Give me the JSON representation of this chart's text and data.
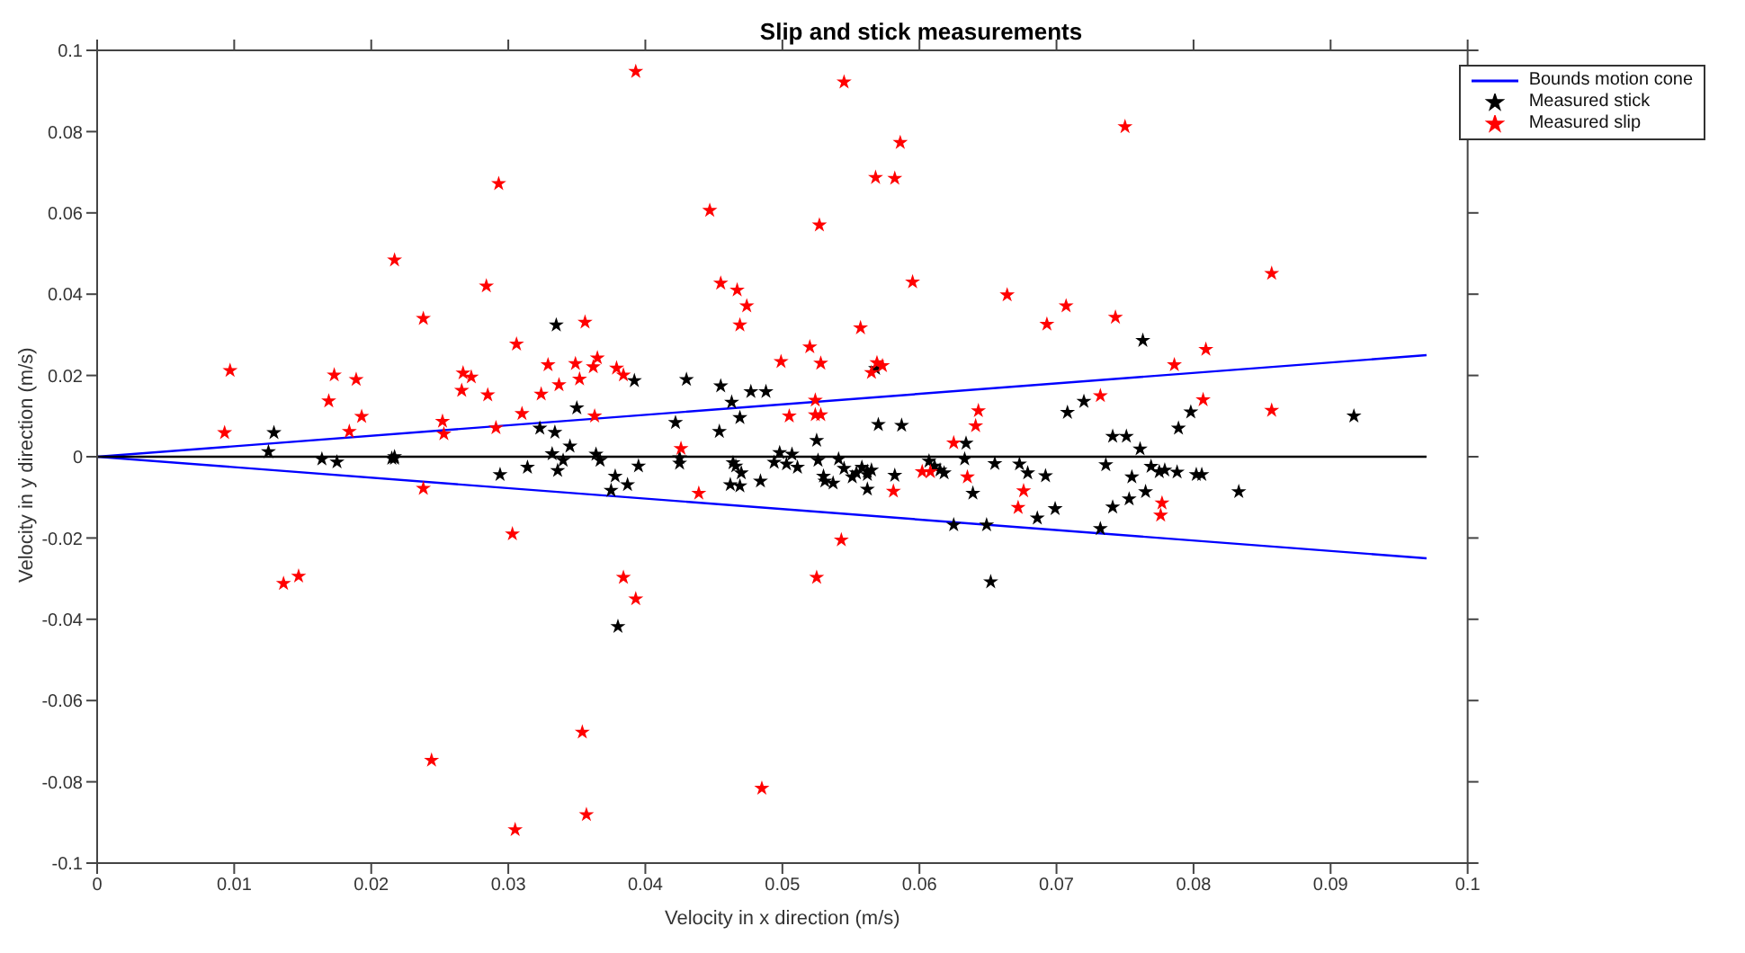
{
  "chart_data": {
    "type": "scatter",
    "title": "Slip and stick measurements",
    "xlabel": "Velocity in x direction (m/s)",
    "ylabel": "Velocity in y direction (m/s)",
    "xlim": [
      0,
      0.1
    ],
    "xticks": [
      0,
      0.01,
      0.02,
      0.03,
      0.04,
      0.05,
      0.06,
      0.07,
      0.08,
      0.09,
      0.1
    ],
    "ylim": [
      -0.1,
      0.1
    ],
    "yticks": [
      -0.1,
      -0.08,
      -0.06,
      -0.04,
      -0.02,
      0,
      0.02,
      0.04,
      0.06,
      0.08,
      0.1
    ],
    "legend": "top right",
    "series": [
      {
        "type": "line",
        "name": "Bounds motion cone",
        "color": "#0000ff",
        "marker": "none",
        "x": [
          0,
          0.097
        ],
        "values": [
          0,
          0.025
        ]
      },
      {
        "type": "line",
        "color": "#0000ff",
        "marker": "none",
        "x": [
          0,
          0.097
        ],
        "values": [
          0,
          -0.025
        ]
      },
      {
        "type": "line",
        "color": "#000000",
        "marker": "none",
        "x": [
          0,
          0.097
        ],
        "values": [
          0,
          0
        ]
      },
      {
        "name": "Measured stick",
        "color": "#000000",
        "marker": "star",
        "x": [
          0.0335,
          0.0129,
          0.0323,
          0.0334,
          0.0125,
          0.0217,
          0.0332,
          0.0164,
          0.0175,
          0.0215,
          0.0217,
          0.0294,
          0.0314,
          0.0336,
          0.0392,
          0.043,
          0.0455,
          0.0477,
          0.0488,
          0.0463,
          0.035,
          0.0469,
          0.0568,
          0.0422,
          0.0454,
          0.0525,
          0.057,
          0.0587,
          0.0345,
          0.0634,
          0.034,
          0.0364,
          0.0367,
          0.0378,
          0.0375,
          0.0387,
          0.0395,
          0.0425,
          0.0425,
          0.0462,
          0.0469,
          0.047,
          0.0464,
          0.0466,
          0.0484,
          0.0494,
          0.0498,
          0.0503,
          0.0507,
          0.0511,
          0.0526,
          0.053,
          0.0531,
          0.0537,
          0.0541,
          0.0545,
          0.0551,
          0.0558,
          0.0562,
          0.0565,
          0.0562,
          0.0554,
          0.0562,
          0.0582,
          0.0607,
          0.0611,
          0.0615,
          0.0618,
          0.0633,
          0.0639,
          0.0655,
          0.0625,
          0.0649,
          0.0652,
          0.038,
          0.0763,
          0.0708,
          0.072,
          0.0798,
          0.0789,
          0.0741,
          0.0751,
          0.0761,
          0.0917,
          0.0673,
          0.0679,
          0.0692,
          0.0736,
          0.0755,
          0.0769,
          0.0775,
          0.0779,
          0.0788,
          0.0802,
          0.0806,
          0.0833,
          0.0765,
          0.0753,
          0.0741,
          0.0699,
          0.0686,
          0.0732
        ],
        "values": [
          0.0324,
          0.0059,
          0.007,
          0.006,
          0.0012,
          0,
          0.0007,
          -0.0006,
          -0.0013,
          -0.0004,
          -0.0004,
          -0.0044,
          -0.0026,
          -0.0034,
          0.0187,
          0.019,
          0.0174,
          0.016,
          0.016,
          0.0134,
          0.012,
          0.0096,
          0.0217,
          0.0084,
          0.0062,
          0.004,
          0.0079,
          0.0077,
          0.0026,
          0.0033,
          -0.0009,
          0.0006,
          -0.0009,
          -0.0048,
          -0.0083,
          -0.0069,
          -0.0023,
          -0.0003,
          -0.0016,
          -0.0069,
          -0.0072,
          -0.004,
          -0.0015,
          -0.0023,
          -0.006,
          -0.0014,
          0.001,
          -0.0018,
          0.0006,
          -0.0026,
          -0.0009,
          -0.0048,
          -0.006,
          -0.0065,
          -0.0006,
          -0.0029,
          -0.005,
          -0.0026,
          -0.0036,
          -0.0033,
          -0.0044,
          -0.004,
          -0.008,
          -0.0046,
          -0.0011,
          -0.0023,
          -0.0033,
          -0.004,
          -0.0006,
          -0.009,
          -0.0017,
          -0.0168,
          -0.0168,
          -0.0308,
          -0.0418,
          0.0286,
          0.0109,
          0.0136,
          0.011,
          0.007,
          0.005,
          0.005,
          0.0019,
          0.01,
          -0.0018,
          -0.004,
          -0.0047,
          -0.002,
          -0.005,
          -0.0024,
          -0.0037,
          -0.0033,
          -0.0038,
          -0.0044,
          -0.0044,
          -0.0086,
          -0.0086,
          -0.0104,
          -0.0124,
          -0.0128,
          -0.0151,
          -0.0177
        ]
      },
      {
        "name": "Measured slip",
        "color": "#ff0000",
        "marker": "star",
        "x": [
          0.0293,
          0.0217,
          0.0284,
          0.0238,
          0.0306,
          0.0097,
          0.0173,
          0.0189,
          0.0329,
          0.0267,
          0.0273,
          0.0266,
          0.0169,
          0.0285,
          0.0324,
          0.0337,
          0.0193,
          0.031,
          0.0252,
          0.0093,
          0.0184,
          0.0253,
          0.0291,
          0.0238,
          0.0303,
          0.0136,
          0.0147,
          0.0244,
          0.0305,
          0.0393,
          0.0545,
          0.0586,
          0.0568,
          0.0582,
          0.0447,
          0.0527,
          0.0455,
          0.0467,
          0.0474,
          0.0595,
          0.0664,
          0.0356,
          0.0469,
          0.0557,
          0.052,
          0.0499,
          0.0528,
          0.0569,
          0.0565,
          0.0573,
          0.0349,
          0.0365,
          0.0362,
          0.0352,
          0.0379,
          0.0384,
          0.0363,
          0.0505,
          0.0524,
          0.0524,
          0.0528,
          0.0643,
          0.0641,
          0.0625,
          0.0426,
          0.0439,
          0.0602,
          0.0608,
          0.0635,
          0.0581,
          0.0543,
          0.0525,
          0.0384,
          0.0393,
          0.0354,
          0.0357,
          0.0485,
          0.075,
          0.0857,
          0.0693,
          0.0707,
          0.0743,
          0.0786,
          0.0809,
          0.0732,
          0.0807,
          0.0857,
          0.0676,
          0.0672,
          0.0777,
          0.0776
        ],
        "values": [
          0.0672,
          0.0484,
          0.042,
          0.034,
          0.0277,
          0.0212,
          0.0201,
          0.019,
          0.0226,
          0.0206,
          0.0196,
          0.0163,
          0.0137,
          0.0152,
          0.0154,
          0.0177,
          0.0099,
          0.0106,
          0.0087,
          0.0059,
          0.0062,
          0.0056,
          0.0071,
          -0.0078,
          -0.019,
          -0.0312,
          -0.0294,
          -0.0747,
          -0.0918,
          0.0948,
          0.0922,
          0.0773,
          0.0687,
          0.0685,
          0.0606,
          0.057,
          0.0427,
          0.041,
          0.0371,
          0.043,
          0.0398,
          0.0331,
          0.0324,
          0.0317,
          0.027,
          0.0234,
          0.023,
          0.0231,
          0.0207,
          0.0224,
          0.0229,
          0.0243,
          0.0221,
          0.0191,
          0.0218,
          0.0201,
          0.01,
          0.01,
          0.0139,
          0.0103,
          0.0103,
          0.0113,
          0.0076,
          0.0034,
          0.002,
          -0.009,
          -0.0037,
          -0.0037,
          -0.005,
          -0.0085,
          -0.0205,
          -0.0297,
          -0.0297,
          -0.035,
          -0.0678,
          -0.0881,
          -0.0816,
          0.0812,
          0.0451,
          0.0326,
          0.0371,
          0.0343,
          0.0226,
          0.0264,
          0.015,
          0.014,
          0.0114,
          -0.0084,
          -0.0125,
          -0.0114,
          -0.0144
        ]
      }
    ]
  }
}
